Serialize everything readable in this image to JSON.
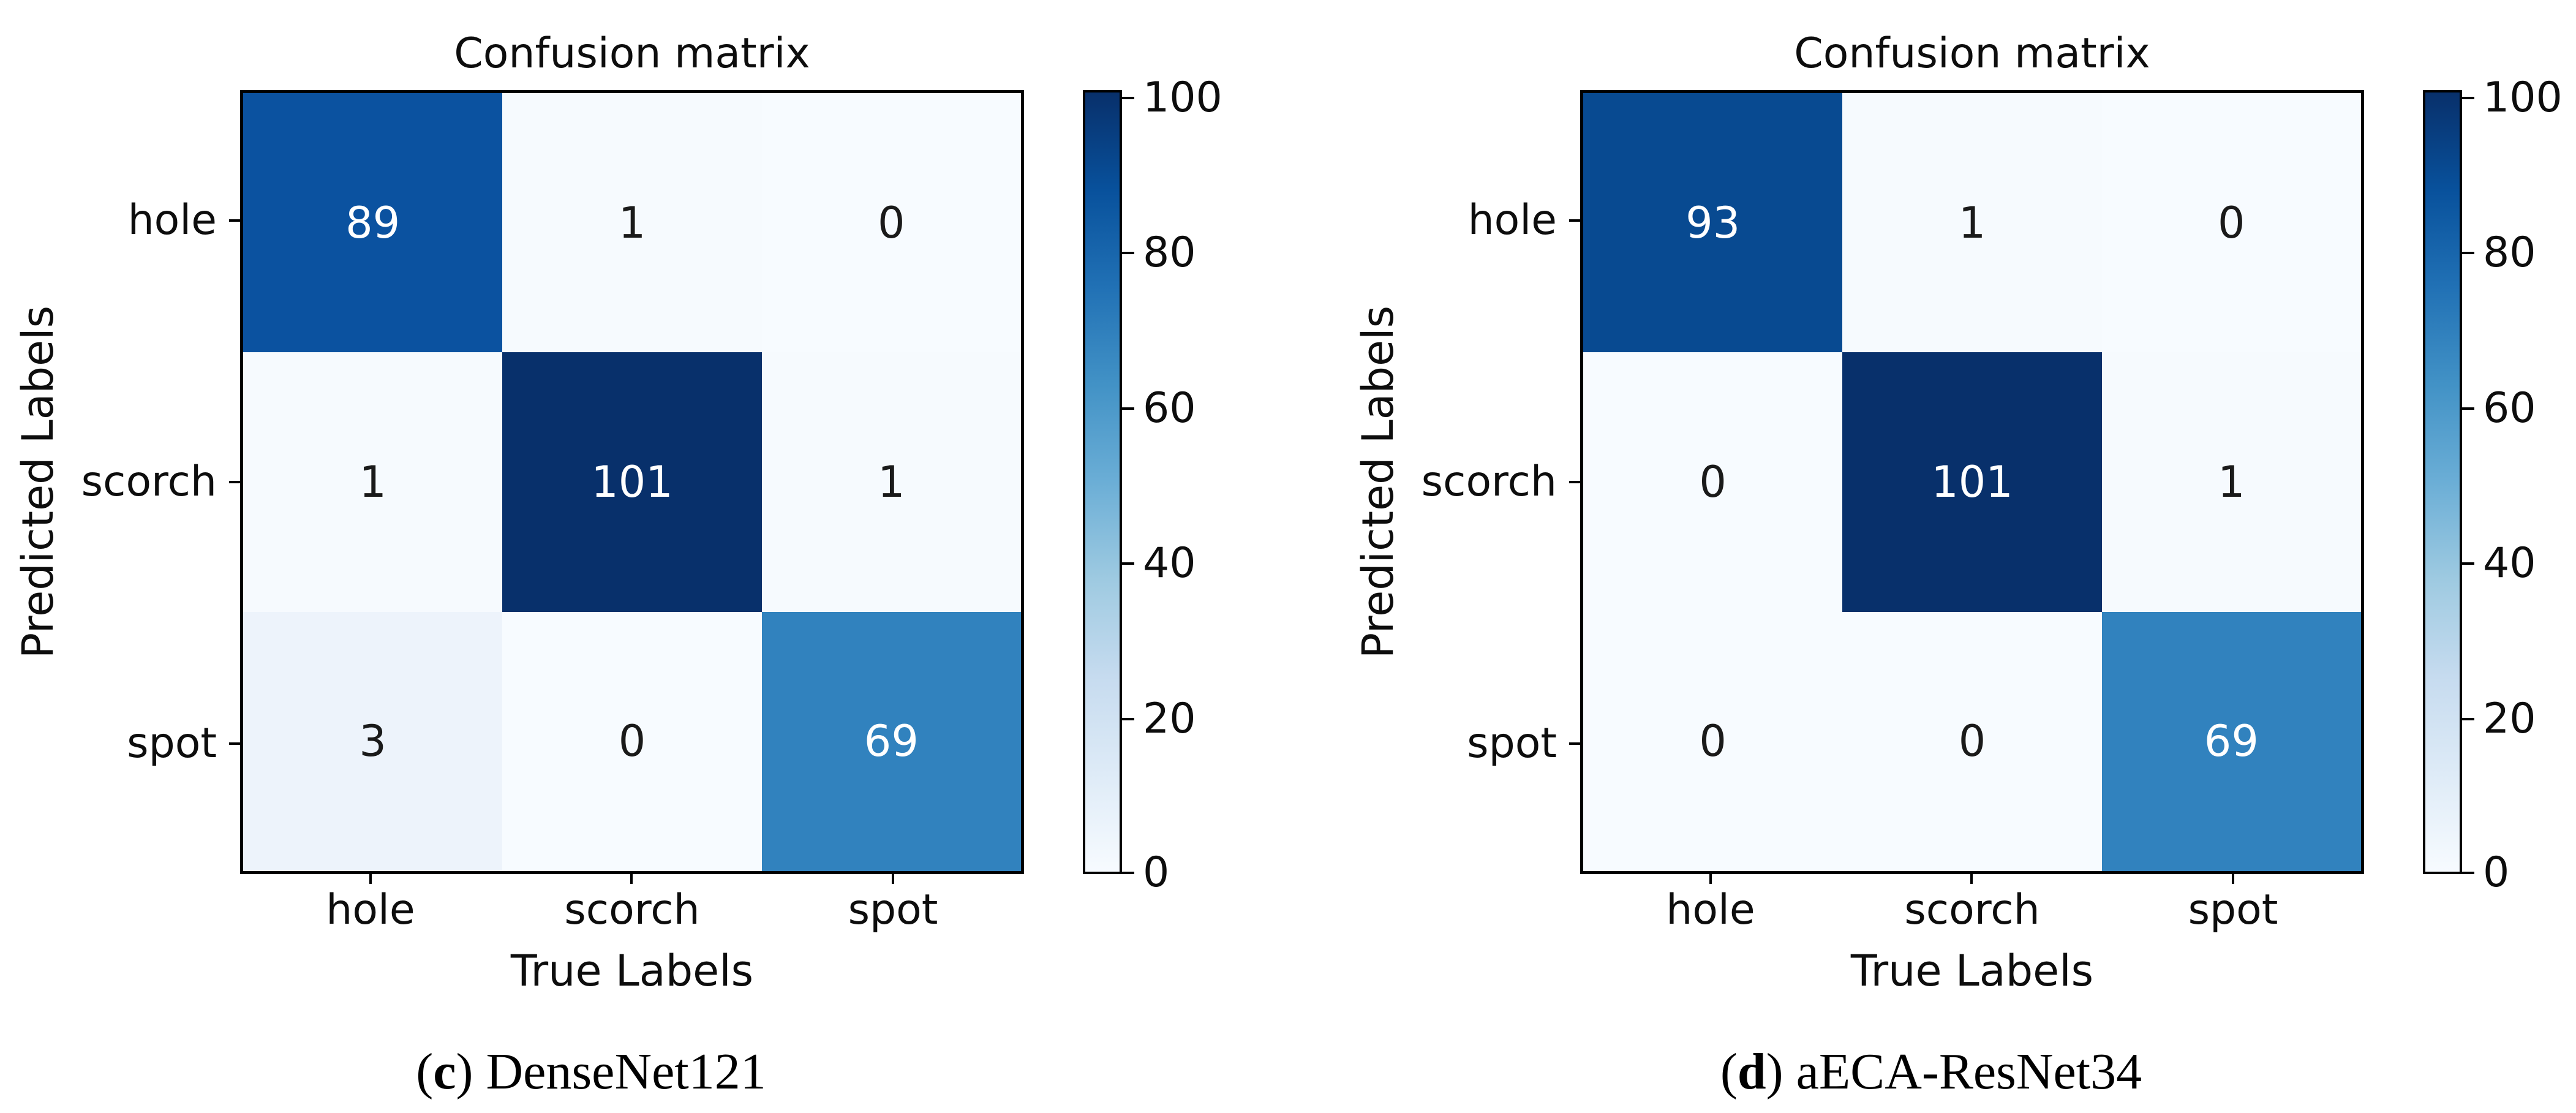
{
  "chart_data": [
    {
      "type": "heatmap",
      "panel": "c",
      "title": "Confusion matrix",
      "xlabel": "True Labels",
      "ylabel": "Predicted Labels",
      "x_categories": [
        "hole",
        "scorch",
        "spot"
      ],
      "y_categories": [
        "hole",
        "scorch",
        "spot"
      ],
      "matrix": [
        [
          89,
          1,
          0
        ],
        [
          1,
          101,
          1
        ],
        [
          3,
          0,
          69
        ]
      ],
      "colormap": "Blues",
      "colorbar_ticks": [
        0,
        20,
        40,
        60,
        80,
        100
      ],
      "colorbar_range": [
        0,
        101
      ],
      "legend_position": "right",
      "caption": "(c) DenseNet121"
    },
    {
      "type": "heatmap",
      "panel": "d",
      "title": "Confusion matrix",
      "xlabel": "True Labels",
      "ylabel": "Predicted Labels",
      "x_categories": [
        "hole",
        "scorch",
        "spot"
      ],
      "y_categories": [
        "hole",
        "scorch",
        "spot"
      ],
      "matrix": [
        [
          93,
          1,
          0
        ],
        [
          0,
          101,
          1
        ],
        [
          0,
          0,
          69
        ]
      ],
      "colormap": "Blues",
      "colorbar_ticks": [
        0,
        20,
        40,
        60,
        80,
        100
      ],
      "colorbar_range": [
        0,
        101
      ],
      "legend_position": "right",
      "caption": "(d) aECA-ResNet34"
    }
  ],
  "colors": {
    "cmap_low": "#f7fbff",
    "cmap_high": "#08306b",
    "cmap_stops": [
      "#f7fbff",
      "#deebf7",
      "#c6dbef",
      "#9ecae1",
      "#6baed6",
      "#4292c6",
      "#2171b5",
      "#08519c",
      "#08306b"
    ],
    "axis_line": "#000000",
    "text": "#0d0d0d"
  },
  "panels": [
    {
      "title": "Confusion matrix",
      "y_axis_label": "Predicted Labels",
      "x_axis_label": "True Labels",
      "row_labels": [
        "hole",
        "scorch",
        "spot"
      ],
      "col_labels": [
        "hole",
        "scorch",
        "spot"
      ],
      "cells": [
        {
          "v": "89",
          "bg": "#0b52a0",
          "fg": "#ffffff"
        },
        {
          "v": "1",
          "bg": "#f6fafe",
          "fg": "#1a1a1a"
        },
        {
          "v": "0",
          "bg": "#f7fbff",
          "fg": "#1a1a1a"
        },
        {
          "v": "1",
          "bg": "#f6fafe",
          "fg": "#1a1a1a"
        },
        {
          "v": "101",
          "bg": "#08306b",
          "fg": "#ffffff"
        },
        {
          "v": "1",
          "bg": "#f6fafe",
          "fg": "#1a1a1a"
        },
        {
          "v": "3",
          "bg": "#edf3fb",
          "fg": "#1a1a1a"
        },
        {
          "v": "0",
          "bg": "#f7fbff",
          "fg": "#1a1a1a"
        },
        {
          "v": "69",
          "bg": "#3182be",
          "fg": "#ffffff"
        }
      ],
      "colorbar_labels": [
        "100",
        "80",
        "60",
        "40",
        "20",
        "0"
      ],
      "caption": {
        "pre": "(",
        "letter": "c",
        "post": ") DenseNet121"
      }
    },
    {
      "title": "Confusion matrix",
      "y_axis_label": "Predicted Labels",
      "x_axis_label": "True Labels",
      "row_labels": [
        "hole",
        "scorch",
        "spot"
      ],
      "col_labels": [
        "hole",
        "scorch",
        "spot"
      ],
      "cells": [
        {
          "v": "93",
          "bg": "#084a91",
          "fg": "#ffffff"
        },
        {
          "v": "1",
          "bg": "#f6fafe",
          "fg": "#1a1a1a"
        },
        {
          "v": "0",
          "bg": "#f7fbff",
          "fg": "#1a1a1a"
        },
        {
          "v": "0",
          "bg": "#f7fbff",
          "fg": "#1a1a1a"
        },
        {
          "v": "101",
          "bg": "#08306b",
          "fg": "#ffffff"
        },
        {
          "v": "1",
          "bg": "#f6fafe",
          "fg": "#1a1a1a"
        },
        {
          "v": "0",
          "bg": "#f7fbff",
          "fg": "#1a1a1a"
        },
        {
          "v": "0",
          "bg": "#f7fbff",
          "fg": "#1a1a1a"
        },
        {
          "v": "69",
          "bg": "#3182be",
          "fg": "#ffffff"
        }
      ],
      "colorbar_labels": [
        "100",
        "80",
        "60",
        "40",
        "20",
        "0"
      ],
      "caption": {
        "pre": "(",
        "letter": "d",
        "post": ") aECA-ResNet34"
      }
    }
  ]
}
